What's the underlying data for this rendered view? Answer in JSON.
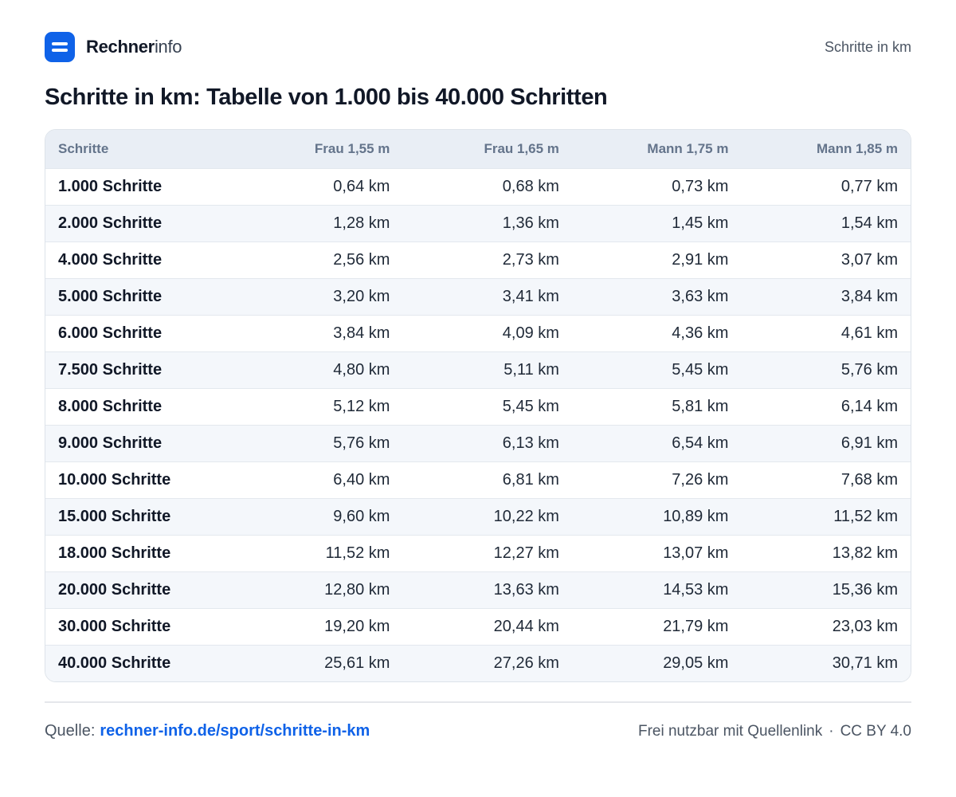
{
  "header": {
    "brand_bold": "Rechner",
    "brand_light": "info",
    "right_text": "Schritte in km"
  },
  "title": "Schritte in km: Tabelle von 1.000 bis 40.000 Schritten",
  "table": {
    "headers": [
      "Schritte",
      "Frau 1,55 m",
      "Frau 1,65 m",
      "Mann 1,75 m",
      "Mann 1,85 m"
    ],
    "rows": [
      [
        "1.000 Schritte",
        "0,64 km",
        "0,68 km",
        "0,73 km",
        "0,77 km"
      ],
      [
        "2.000 Schritte",
        "1,28 km",
        "1,36 km",
        "1,45 km",
        "1,54 km"
      ],
      [
        "4.000 Schritte",
        "2,56 km",
        "2,73 km",
        "2,91 km",
        "3,07 km"
      ],
      [
        "5.000 Schritte",
        "3,20 km",
        "3,41 km",
        "3,63 km",
        "3,84 km"
      ],
      [
        "6.000 Schritte",
        "3,84 km",
        "4,09 km",
        "4,36 km",
        "4,61 km"
      ],
      [
        "7.500 Schritte",
        "4,80 km",
        "5,11 km",
        "5,45 km",
        "5,76 km"
      ],
      [
        "8.000 Schritte",
        "5,12 km",
        "5,45 km",
        "5,81 km",
        "6,14 km"
      ],
      [
        "9.000 Schritte",
        "5,76 km",
        "6,13 km",
        "6,54 km",
        "6,91 km"
      ],
      [
        "10.000 Schritte",
        "6,40 km",
        "6,81 km",
        "7,26 km",
        "7,68 km"
      ],
      [
        "15.000 Schritte",
        "9,60 km",
        "10,22 km",
        "10,89 km",
        "11,52 km"
      ],
      [
        "18.000 Schritte",
        "11,52 km",
        "12,27 km",
        "13,07 km",
        "13,82 km"
      ],
      [
        "20.000 Schritte",
        "12,80 km",
        "13,63 km",
        "14,53 km",
        "15,36 km"
      ],
      [
        "30.000 Schritte",
        "19,20 km",
        "20,44 km",
        "21,79 km",
        "23,03 km"
      ],
      [
        "40.000 Schritte",
        "25,61 km",
        "27,26 km",
        "29,05 km",
        "30,71 km"
      ]
    ]
  },
  "footer": {
    "source_label": "Quelle:",
    "source_link": "rechner-info.de/sport/schritte-in-km",
    "usage": "Frei nutzbar mit Quellenlink",
    "separator": "·",
    "license": "CC BY 4.0"
  },
  "colors": {
    "accent": "#0f62e8",
    "header_bg": "#e9eef5",
    "stripe_bg": "#f4f7fb"
  }
}
